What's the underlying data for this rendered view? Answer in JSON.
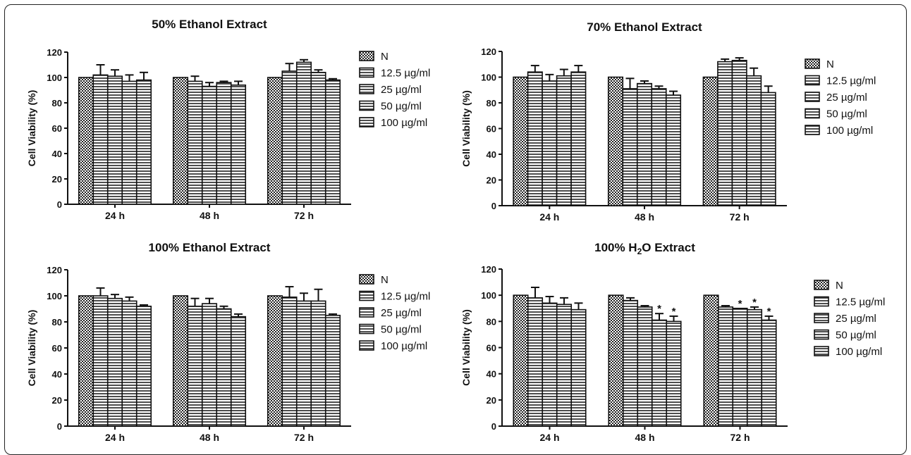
{
  "chart_data": [
    {
      "type": "bar",
      "title": "50% Ethanol Extract",
      "ylabel": "Cell Viability (%)",
      "ylim": [
        0,
        120
      ],
      "yticks": [
        "0",
        "20",
        "40",
        "60",
        "80",
        "100",
        "120"
      ],
      "categories": [
        "24 h",
        "48 h",
        "72 h"
      ],
      "series": [
        {
          "name": "N",
          "values": [
            100,
            100,
            100
          ],
          "errors": [
            0,
            0,
            0
          ]
        },
        {
          "name": "12.5 µg/ml",
          "values": [
            102,
            97,
            105
          ],
          "errors": [
            8,
            4,
            6
          ]
        },
        {
          "name": "25 µg/ml",
          "values": [
            101,
            93,
            112
          ],
          "errors": [
            5,
            3,
            2
          ]
        },
        {
          "name": "50 µg/ml",
          "values": [
            97,
            96,
            104
          ],
          "errors": [
            5,
            1,
            2
          ]
        },
        {
          "name": "100 µg/ml",
          "values": [
            98,
            94,
            98
          ],
          "errors": [
            6,
            3,
            1
          ]
        }
      ],
      "significance": [
        [],
        [],
        []
      ],
      "legend": "right"
    },
    {
      "type": "bar",
      "title": "70% Ethanol Extract",
      "ylabel": "Cell Viability (%)",
      "ylim": [
        0,
        120
      ],
      "yticks": [
        "0",
        "20",
        "40",
        "60",
        "80",
        "100",
        "120"
      ],
      "categories": [
        "24 h",
        "48 h",
        "72 h"
      ],
      "series": [
        {
          "name": "N",
          "values": [
            100,
            100,
            100
          ],
          "errors": [
            0,
            0,
            0
          ]
        },
        {
          "name": "12.5 µg/ml",
          "values": [
            104,
            91,
            112
          ],
          "errors": [
            5,
            8,
            2
          ]
        },
        {
          "name": "25 µg/ml",
          "values": [
            97,
            95,
            113
          ],
          "errors": [
            5,
            2,
            2
          ]
        },
        {
          "name": "50 µg/ml",
          "values": [
            101,
            91,
            101
          ],
          "errors": [
            5,
            2,
            6
          ]
        },
        {
          "name": "100 µg/ml",
          "values": [
            104,
            86,
            88
          ],
          "errors": [
            5,
            3,
            5
          ]
        }
      ],
      "significance": [
        [],
        [],
        []
      ],
      "legend": "right"
    },
    {
      "type": "bar",
      "title": "100% Ethanol Extract",
      "ylabel": "Cell Viability (%)",
      "ylim": [
        0,
        120
      ],
      "yticks": [
        "0",
        "20",
        "40",
        "60",
        "80",
        "100",
        "120"
      ],
      "categories": [
        "24 h",
        "48 h",
        "72 h"
      ],
      "series": [
        {
          "name": "N",
          "values": [
            100,
            100,
            100
          ],
          "errors": [
            0,
            0,
            0
          ]
        },
        {
          "name": "12.5 µg/ml",
          "values": [
            100,
            92,
            99
          ],
          "errors": [
            6,
            6,
            8
          ]
        },
        {
          "name": "25 µg/ml",
          "values": [
            98,
            94,
            96
          ],
          "errors": [
            3,
            4,
            6
          ]
        },
        {
          "name": "50 µg/ml",
          "values": [
            96,
            90,
            96
          ],
          "errors": [
            3,
            2,
            9
          ]
        },
        {
          "name": "100 µg/ml",
          "values": [
            92,
            84,
            85
          ],
          "errors": [
            1,
            2,
            1
          ]
        }
      ],
      "significance": [
        [],
        [],
        []
      ],
      "legend": "right"
    },
    {
      "type": "bar",
      "title_parts": [
        "100% H",
        "2",
        "O Extract"
      ],
      "ylabel": "Cell Viability (%)",
      "ylim": [
        0,
        120
      ],
      "yticks": [
        "0",
        "20",
        "40",
        "60",
        "80",
        "100",
        "120"
      ],
      "categories": [
        "24 h",
        "48 h",
        "72 h"
      ],
      "series": [
        {
          "name": "N",
          "values": [
            100,
            100,
            100
          ],
          "errors": [
            0,
            0,
            0
          ]
        },
        {
          "name": "12.5 µg/ml",
          "values": [
            98,
            96,
            91
          ],
          "errors": [
            8,
            2,
            1
          ]
        },
        {
          "name": "25 µg/ml",
          "values": [
            94,
            91,
            90
          ],
          "errors": [
            5,
            1,
            0
          ]
        },
        {
          "name": "50 µg/ml",
          "values": [
            93,
            81,
            89
          ],
          "errors": [
            5,
            5,
            2
          ]
        },
        {
          "name": "100 µg/ml",
          "values": [
            89,
            80,
            81
          ],
          "errors": [
            5,
            4,
            3
          ]
        }
      ],
      "significance": [
        [],
        [
          "*",
          "*"
        ],
        [
          "*",
          "*",
          "*"
        ]
      ],
      "significance_series": [
        [],
        [
          3,
          4
        ],
        [
          2,
          3,
          4
        ]
      ],
      "legend": "right"
    }
  ]
}
